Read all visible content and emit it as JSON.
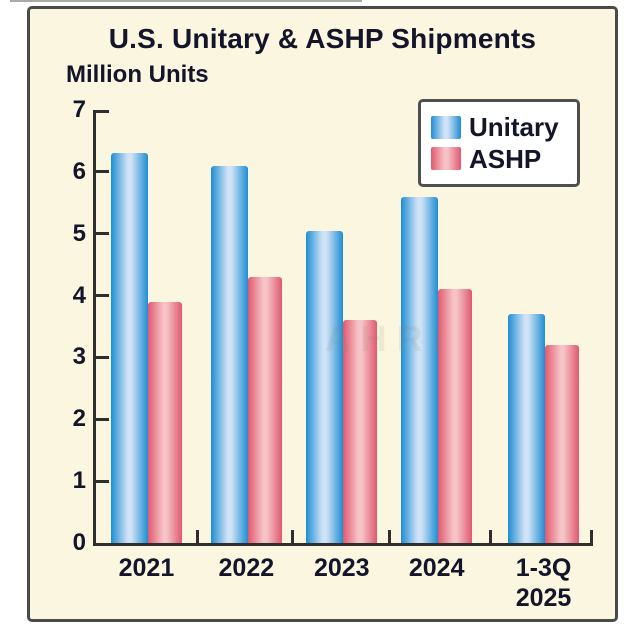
{
  "title": "U.S. Unitary & ASHP Shipments",
  "ylabel": "Million Units",
  "watermark": "AHRI",
  "colors": {
    "background": "#faf6e0",
    "frame_border": "#4a4a4a",
    "axis": "#2e2e2e",
    "text": "#14142a",
    "unitary_edge": "#1f8dd3",
    "unitary_center": "#cfe2f6",
    "ashp_edge": "#e0596f",
    "ashp_center": "#f6c3c7",
    "legend_background": "#ffffff"
  },
  "chart_data": {
    "type": "bar",
    "title": "U.S. Unitary & ASHP Shipments",
    "ylabel": "Million Units",
    "xlabel": "",
    "categories": [
      "2021",
      "2022",
      "2023",
      "2024",
      "1-3Q\n2025"
    ],
    "series": [
      {
        "name": "Unitary",
        "color": "#1f8dd3",
        "color_light": "#cfe2f6",
        "values": [
          6.3,
          6.1,
          5.05,
          5.6,
          3.7
        ]
      },
      {
        "name": "ASHP",
        "color": "#e0596f",
        "color_light": "#f6c3c7",
        "values": [
          3.9,
          4.3,
          3.6,
          4.1,
          3.2
        ]
      }
    ],
    "ylim": [
      0,
      7
    ],
    "yticks": [
      0,
      1,
      2,
      3,
      4,
      5,
      6,
      7
    ],
    "grid": false,
    "legend_position": "top-right"
  }
}
